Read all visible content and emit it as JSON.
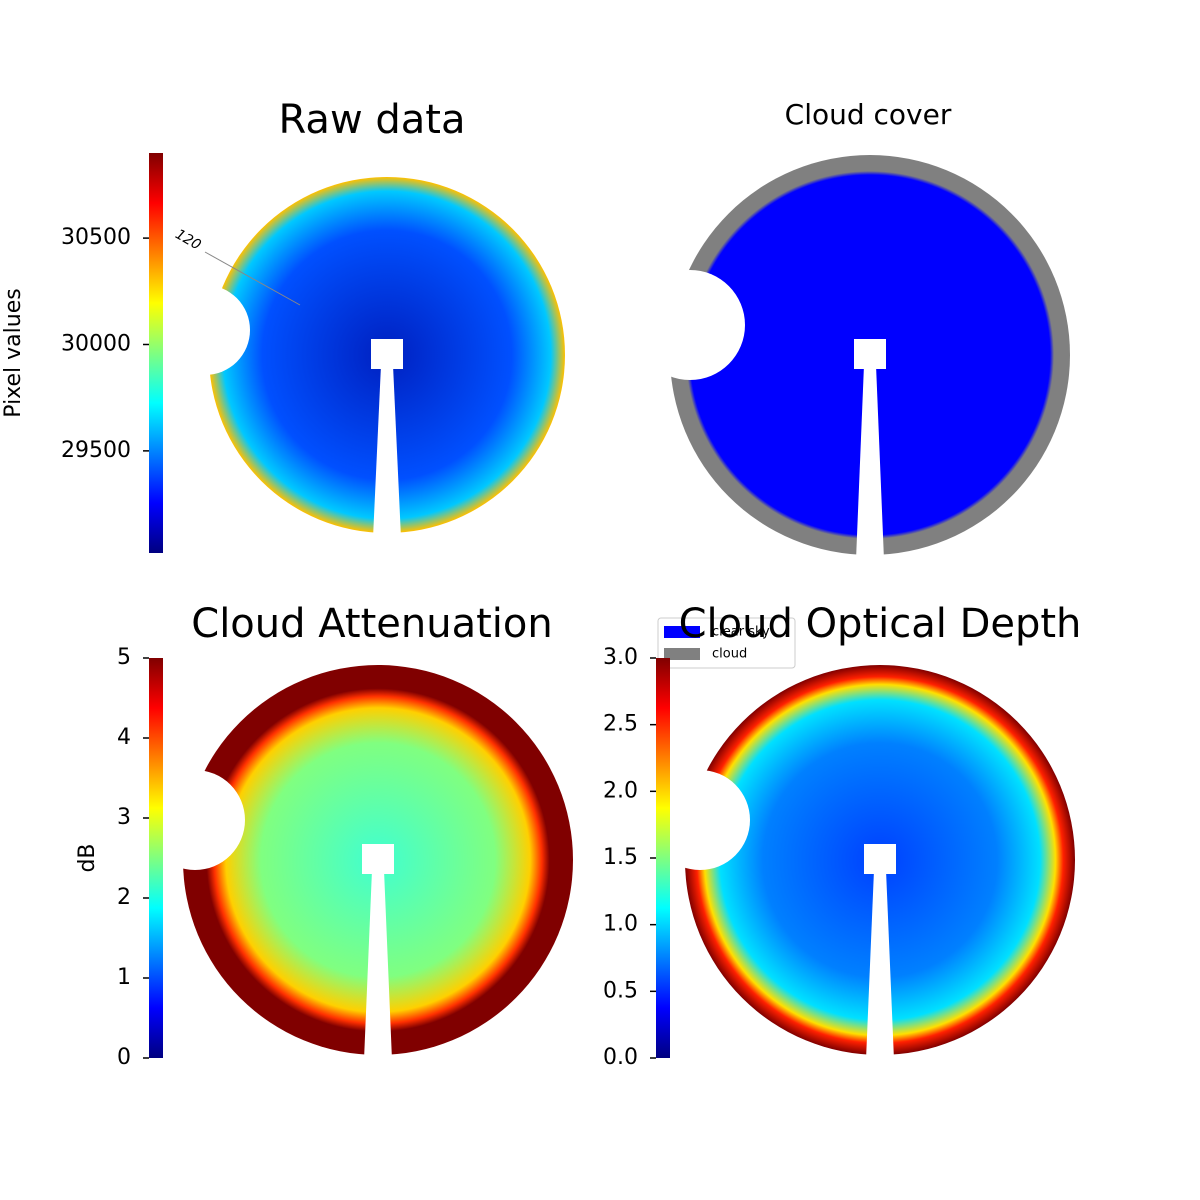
{
  "chart_data": [
    {
      "type": "image",
      "title": "Raw data",
      "colormap": "jet",
      "colorbar": {
        "label": "Pixel values",
        "lim": [
          29020,
          30900
        ],
        "ticks": [
          29500,
          30000,
          30500
        ]
      },
      "annotations": [
        "120"
      ]
    },
    {
      "type": "image",
      "title": "Cloud cover",
      "legend": [
        {
          "name": "clear sky",
          "color": "#0000ff"
        },
        {
          "name": "cloud",
          "color": "#808080"
        }
      ]
    },
    {
      "type": "image",
      "title": "Cloud Attenuation",
      "colormap": "jet",
      "colorbar": {
        "label": "dB",
        "lim": [
          0,
          5
        ],
        "ticks": [
          0,
          1,
          2,
          3,
          4,
          5
        ]
      }
    },
    {
      "type": "image",
      "title": "Cloud Optical Depth",
      "colormap": "jet",
      "colorbar": {
        "lim": [
          0,
          3
        ],
        "ticks": [
          {
            "value": 0,
            "label": "0.0"
          },
          0.5,
          {
            "value": 1,
            "label": "1.0"
          },
          1.5,
          {
            "value": 2,
            "label": "2.0"
          },
          2.5,
          {
            "value": 3,
            "label": "3.0"
          }
        ]
      }
    }
  ]
}
